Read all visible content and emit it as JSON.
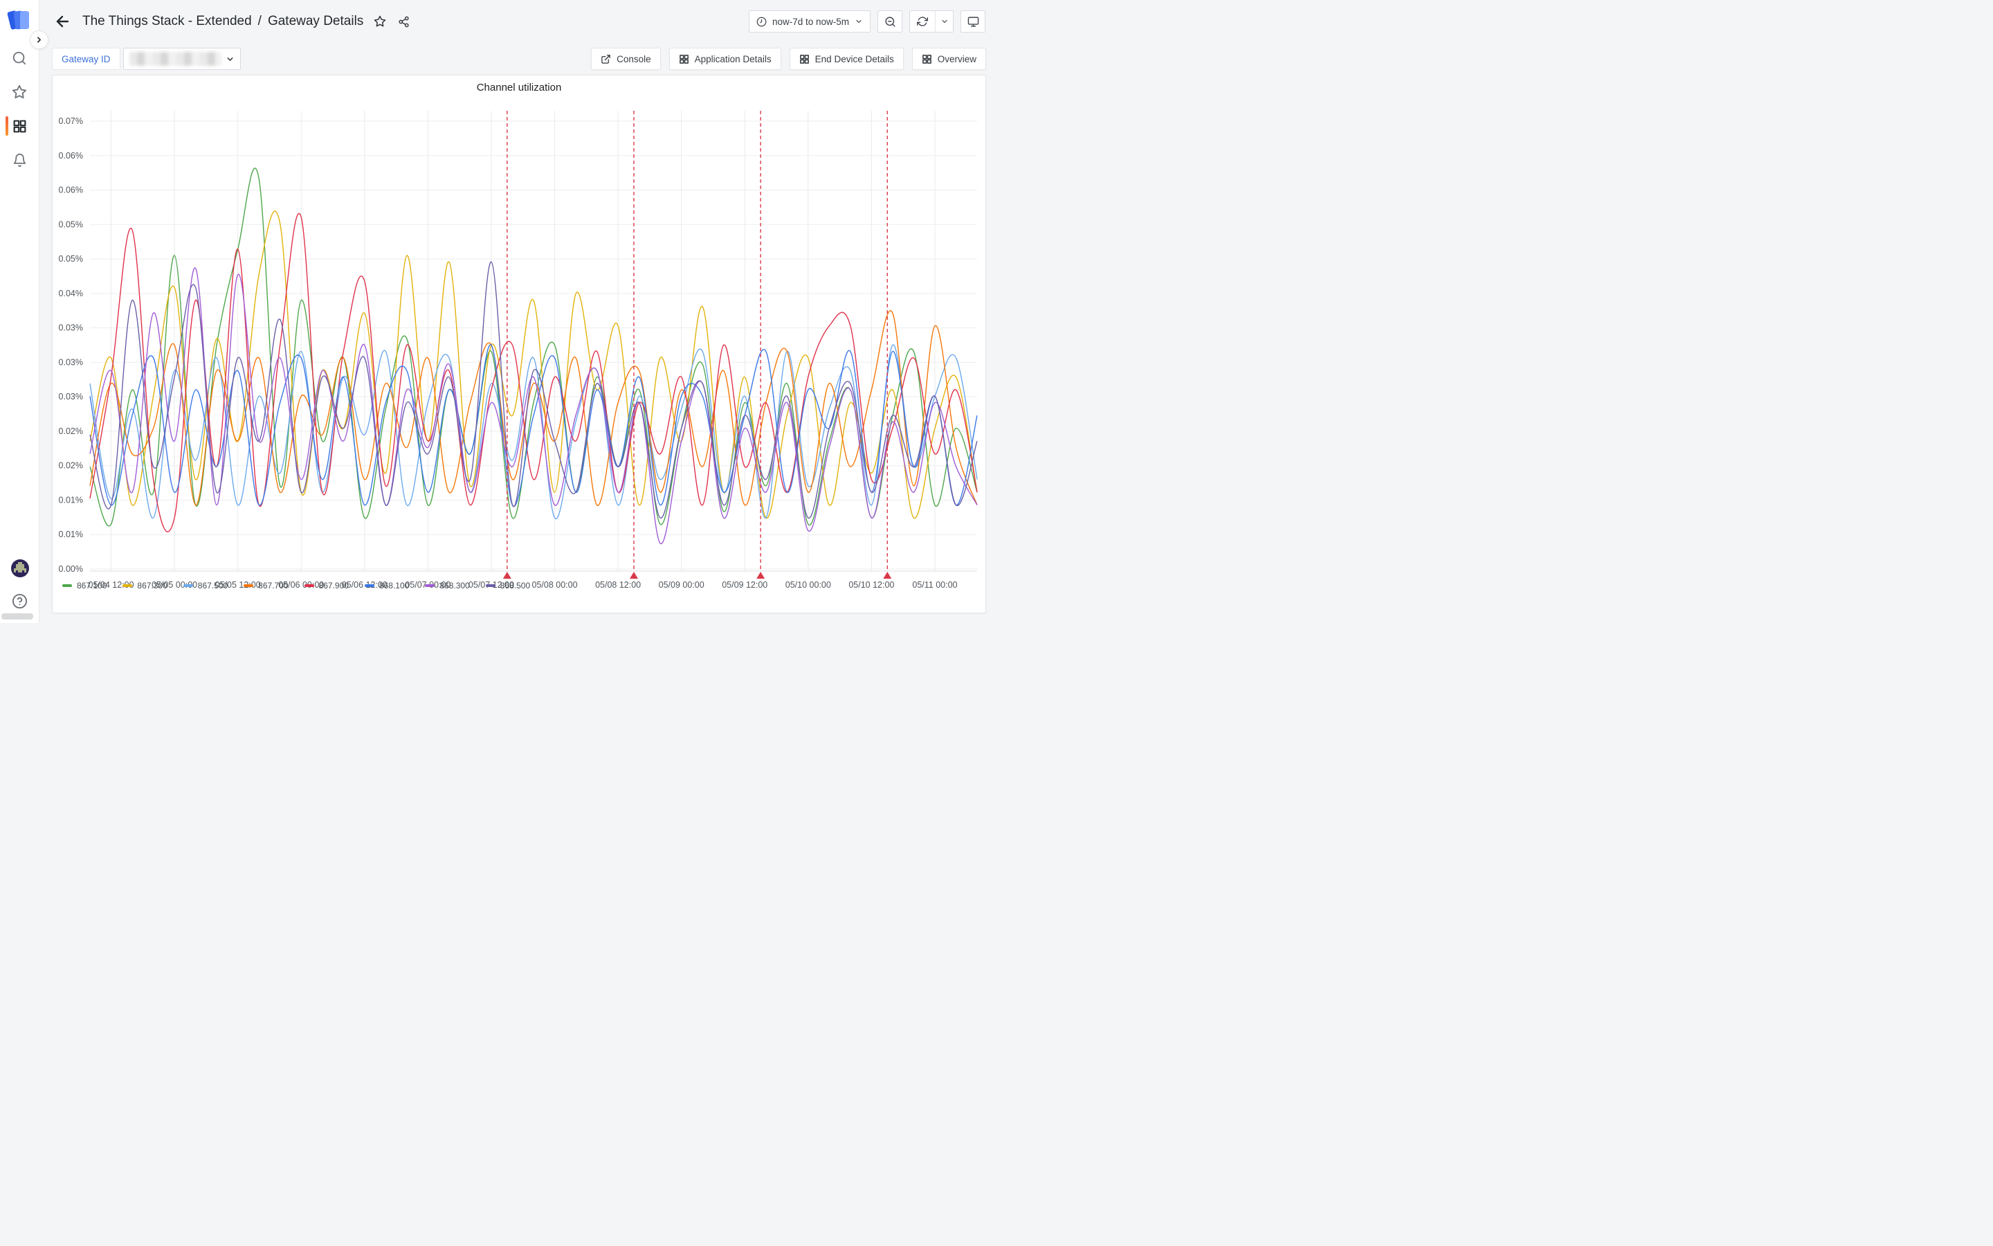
{
  "sidebar": {
    "items": [
      {
        "icon": "search-icon"
      },
      {
        "icon": "star-icon"
      },
      {
        "icon": "dashboards-grid-icon",
        "active": true
      },
      {
        "icon": "bell-icon"
      }
    ],
    "help_icon_glyph": "?"
  },
  "header": {
    "title_folder": "The Things Stack - Extended",
    "title_separator": "/",
    "title_page": "Gateway Details",
    "time_range": {
      "label": "now-7d to now-5m"
    }
  },
  "controls": {
    "gateway_label": "Gateway ID",
    "gateway_value_obscured": true,
    "buttons": [
      {
        "icon": "external-link-icon",
        "label": "Console"
      },
      {
        "icon": "grid-icon",
        "label": "Application Details"
      },
      {
        "icon": "grid-icon",
        "label": "End Device Details"
      },
      {
        "icon": "grid-icon",
        "label": "Overview"
      }
    ]
  },
  "panel": {
    "title": "Channel utilization"
  },
  "colors": {
    "accent_orange": "#F55F3C",
    "link_blue": "#3D71D9",
    "annotation_red": "#D93A49"
  },
  "chart_data": {
    "type": "line",
    "title": "Channel utilization",
    "xlabel": "",
    "ylabel": "",
    "x_start": "05/04 08:00",
    "x_end_hours": 168,
    "x_step_hours": 4,
    "x_tick_hours": [
      4,
      16,
      28,
      40,
      52,
      64,
      76,
      88,
      100,
      112,
      124,
      136,
      148,
      160
    ],
    "x_tick_labels": [
      "05/04 12:00",
      "05/05 00:00",
      "05/05 12:00",
      "05/06 00:00",
      "05/06 12:00",
      "05/07 00:00",
      "05/07 12:00",
      "05/08 00:00",
      "05/08 12:00",
      "05/09 00:00",
      "05/09 12:00",
      "05/10 00:00",
      "05/10 12:00",
      "05/11 00:00"
    ],
    "y_tick_labels_top_to_bottom": [
      "0.07%",
      "0.06%",
      "0.06%",
      "0.05%",
      "0.05%",
      "0.04%",
      "0.03%",
      "0.03%",
      "0.03%",
      "0.02%",
      "0.02%",
      "0.01%",
      "0.01%",
      "0.00%"
    ],
    "ylim_percent": [
      0,
      0.07
    ],
    "grid": true,
    "legend_position": "bottom",
    "annotations_hours": [
      79,
      103,
      127,
      151
    ],
    "annotation_color": "#D93A49",
    "series": [
      {
        "name": "867.100",
        "color": "#4EA64B",
        "values": [
          0.016,
          0.007,
          0.028,
          0.012,
          0.049,
          0.01,
          0.035,
          0.05,
          0.061,
          0.013,
          0.042,
          0.02,
          0.033,
          0.008,
          0.025,
          0.036,
          0.01,
          0.028,
          0.018,
          0.034,
          0.008,
          0.026,
          0.035,
          0.012,
          0.03,
          0.016,
          0.028,
          0.007,
          0.022,
          0.032,
          0.009,
          0.026,
          0.013,
          0.029,
          0.007,
          0.02,
          0.028,
          0.008,
          0.024,
          0.034,
          0.01,
          0.022,
          0.012
        ]
      },
      {
        "name": "867.300",
        "color": "#E2B20B",
        "values": [
          0.02,
          0.033,
          0.01,
          0.027,
          0.044,
          0.014,
          0.036,
          0.02,
          0.046,
          0.054,
          0.012,
          0.031,
          0.022,
          0.04,
          0.015,
          0.049,
          0.02,
          0.048,
          0.013,
          0.035,
          0.024,
          0.042,
          0.012,
          0.043,
          0.028,
          0.038,
          0.01,
          0.033,
          0.02,
          0.041,
          0.012,
          0.03,
          0.008,
          0.024,
          0.033,
          0.01,
          0.026,
          0.015,
          0.028,
          0.008,
          0.022,
          0.03,
          0.012
        ]
      },
      {
        "name": "867.500",
        "color": "#6CA9EC",
        "values": [
          0.029,
          0.011,
          0.025,
          0.008,
          0.031,
          0.017,
          0.033,
          0.01,
          0.027,
          0.015,
          0.034,
          0.012,
          0.03,
          0.021,
          0.034,
          0.01,
          0.026,
          0.033,
          0.012,
          0.029,
          0.017,
          0.033,
          0.008,
          0.023,
          0.031,
          0.01,
          0.027,
          0.014,
          0.025,
          0.034,
          0.012,
          0.027,
          0.008,
          0.034,
          0.013,
          0.025,
          0.031,
          0.01,
          0.035,
          0.016,
          0.027,
          0.033,
          0.014
        ]
      },
      {
        "name": "867.700",
        "color": "#F5770A",
        "values": [
          0.013,
          0.029,
          0.018,
          0.022,
          0.035,
          0.01,
          0.031,
          0.02,
          0.033,
          0.012,
          0.027,
          0.021,
          0.033,
          0.014,
          0.029,
          0.019,
          0.033,
          0.012,
          0.026,
          0.035,
          0.014,
          0.029,
          0.02,
          0.033,
          0.01,
          0.026,
          0.031,
          0.012,
          0.028,
          0.016,
          0.031,
          0.01,
          0.026,
          0.034,
          0.012,
          0.029,
          0.016,
          0.028,
          0.04,
          0.013,
          0.038,
          0.019,
          0.01
        ]
      },
      {
        "name": "867.900",
        "color": "#E0314B",
        "values": [
          0.011,
          0.03,
          0.053,
          0.014,
          0.008,
          0.042,
          0.016,
          0.05,
          0.01,
          0.035,
          0.055,
          0.012,
          0.034,
          0.045,
          0.013,
          0.035,
          0.02,
          0.031,
          0.01,
          0.028,
          0.035,
          0.014,
          0.03,
          0.02,
          0.034,
          0.012,
          0.026,
          0.018,
          0.03,
          0.01,
          0.035,
          0.016,
          0.026,
          0.012,
          0.03,
          0.038,
          0.038,
          0.014,
          0.022,
          0.033,
          0.018,
          0.028,
          0.012
        ]
      },
      {
        "name": "868.100",
        "color": "#3B78E7",
        "values": [
          0.027,
          0.01,
          0.024,
          0.033,
          0.012,
          0.028,
          0.016,
          0.031,
          0.01,
          0.026,
          0.033,
          0.014,
          0.03,
          0.01,
          0.026,
          0.031,
          0.012,
          0.028,
          0.018,
          0.035,
          0.01,
          0.024,
          0.033,
          0.012,
          0.028,
          0.016,
          0.03,
          0.01,
          0.027,
          0.027,
          0.012,
          0.024,
          0.034,
          0.012,
          0.028,
          0.022,
          0.034,
          0.012,
          0.034,
          0.016,
          0.027,
          0.01,
          0.024
        ]
      },
      {
        "name": "868.300",
        "color": "#A05CD5",
        "values": [
          0.018,
          0.031,
          0.012,
          0.04,
          0.02,
          0.047,
          0.01,
          0.046,
          0.02,
          0.033,
          0.014,
          0.031,
          0.02,
          0.035,
          0.01,
          0.028,
          0.019,
          0.032,
          0.012,
          0.026,
          0.016,
          0.03,
          0.01,
          0.024,
          0.031,
          0.012,
          0.026,
          0.004,
          0.02,
          0.029,
          0.008,
          0.022,
          0.012,
          0.026,
          0.006,
          0.019,
          0.028,
          0.008,
          0.023,
          0.012,
          0.026,
          0.016,
          0.01
        ]
      },
      {
        "name": "868.500",
        "color": "#6A5FA8",
        "values": [
          0.021,
          0.01,
          0.042,
          0.016,
          0.03,
          0.044,
          0.012,
          0.033,
          0.02,
          0.039,
          0.012,
          0.03,
          0.022,
          0.033,
          0.01,
          0.026,
          0.018,
          0.03,
          0.014,
          0.048,
          0.01,
          0.031,
          0.02,
          0.012,
          0.029,
          0.016,
          0.026,
          0.008,
          0.022,
          0.029,
          0.01,
          0.024,
          0.014,
          0.027,
          0.008,
          0.022,
          0.029,
          0.012,
          0.024,
          0.016,
          0.027,
          0.01,
          0.02
        ]
      }
    ]
  }
}
